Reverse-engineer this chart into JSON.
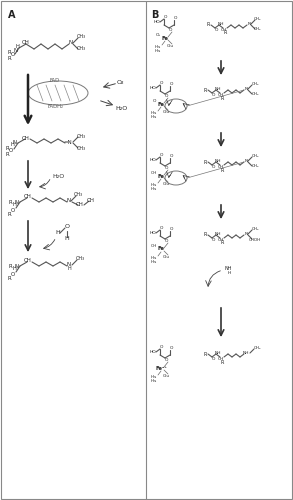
{
  "title_A": "A",
  "title_B": "B",
  "bg_color": "#ffffff",
  "border_color": "#888888",
  "line_color": "#888888",
  "arrow_color": "#444444",
  "text_color": "#222222",
  "fig_width": 2.93,
  "fig_height": 5.0,
  "dpi": 100
}
